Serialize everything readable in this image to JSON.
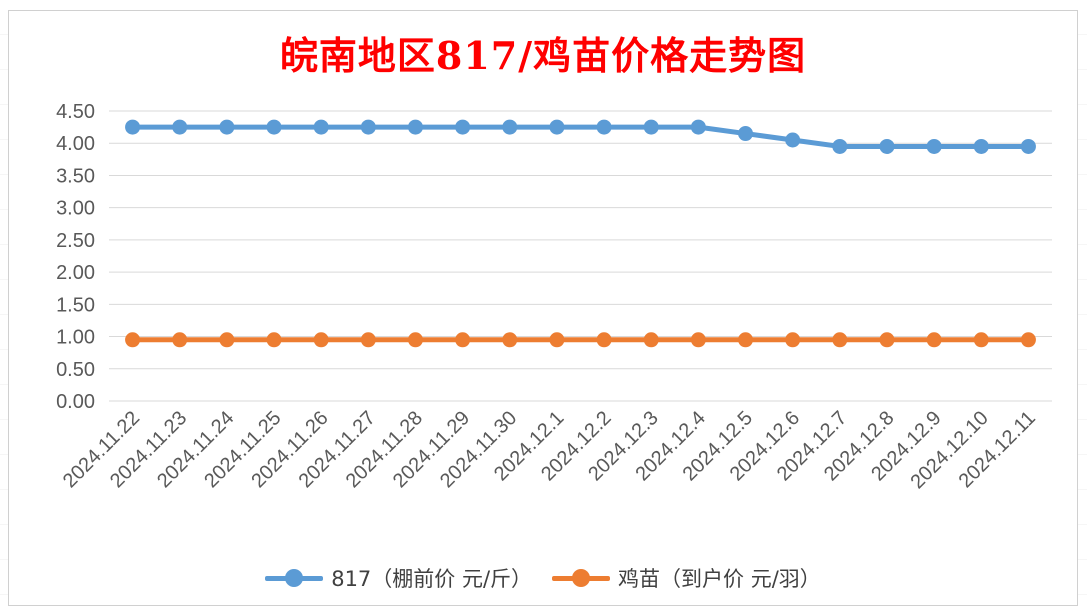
{
  "chart_data": {
    "type": "line",
    "title": "皖南地区817/鸡苗价格走势图",
    "categories": [
      "2024.11.22",
      "2024.11.23",
      "2024.11.24",
      "2024.11.25",
      "2024.11.26",
      "2024.11.27",
      "2024.11.28",
      "2024.11.29",
      "2024.11.30",
      "2024.12.1",
      "2024.12.2",
      "2024.12.3",
      "2024.12.4",
      "2024.12.5",
      "2024.12.6",
      "2024.12.7",
      "2024.12.8",
      "2024.12.9",
      "2024.12.10",
      "2024.12.11"
    ],
    "ylim": [
      0,
      4.5
    ],
    "yticks": [
      "0.00",
      "0.50",
      "1.00",
      "1.50",
      "2.00",
      "2.50",
      "3.00",
      "3.50",
      "4.00",
      "4.50"
    ],
    "grid": true,
    "legend_position": "bottom",
    "series": [
      {
        "name": "817（棚前价 元/斤）",
        "color": "#5b9bd5",
        "values": [
          4.25,
          4.25,
          4.25,
          4.25,
          4.25,
          4.25,
          4.25,
          4.25,
          4.25,
          4.25,
          4.25,
          4.25,
          4.25,
          4.15,
          4.05,
          3.95,
          3.95,
          3.95,
          3.95,
          3.95
        ]
      },
      {
        "name": "鸡苗（到户价 元/羽）",
        "color": "#ed7d31",
        "values": [
          0.95,
          0.95,
          0.95,
          0.95,
          0.95,
          0.95,
          0.95,
          0.95,
          0.95,
          0.95,
          0.95,
          0.95,
          0.95,
          0.95,
          0.95,
          0.95,
          0.95,
          0.95,
          0.95,
          0.95
        ]
      }
    ]
  }
}
